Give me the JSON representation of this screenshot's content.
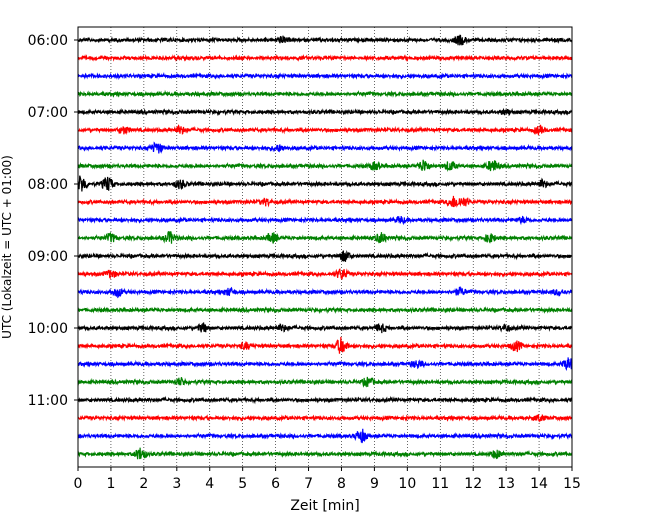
{
  "chart_data": {
    "type": "line",
    "title": "",
    "xlabel": "Zeit  [min]",
    "ylabel": "UTC (Lokalzeit = UTC + 01:00)",
    "xlim": [
      0,
      15
    ],
    "x_ticks": [
      "0",
      "1",
      "2",
      "3",
      "4",
      "5",
      "6",
      "7",
      "8",
      "9",
      "10",
      "11",
      "12",
      "13",
      "14",
      "15"
    ],
    "y_tick_labels": [
      "06:00",
      "07:00",
      "08:00",
      "09:00",
      "10:00",
      "11:00"
    ],
    "grid": "vertical dotted at each minute",
    "trace_colors": [
      "#000000",
      "#ff0000",
      "#0000ff",
      "#008000"
    ],
    "traces": [
      {
        "start": "06:00",
        "color": "#000000",
        "events": [
          [
            6.2,
            0.5
          ],
          [
            11.6,
            0.8
          ]
        ]
      },
      {
        "start": "06:15",
        "color": "#ff0000",
        "events": []
      },
      {
        "start": "06:30",
        "color": "#0000ff",
        "events": []
      },
      {
        "start": "06:45",
        "color": "#008000",
        "events": []
      },
      {
        "start": "07:00",
        "color": "#000000",
        "events": [
          [
            13.0,
            0.4
          ]
        ]
      },
      {
        "start": "07:15",
        "color": "#ff0000",
        "events": [
          [
            1.4,
            0.6
          ],
          [
            3.1,
            0.6
          ],
          [
            14.0,
            0.6
          ]
        ]
      },
      {
        "start": "07:30",
        "color": "#0000ff",
        "events": [
          [
            2.4,
            0.9
          ],
          [
            6.1,
            0.5
          ]
        ]
      },
      {
        "start": "07:45",
        "color": "#008000",
        "events": [
          [
            9.0,
            0.6
          ],
          [
            10.5,
            1.0
          ],
          [
            11.3,
            0.8
          ],
          [
            12.6,
            1.0
          ]
        ]
      },
      {
        "start": "08:00",
        "color": "#000000",
        "events": [
          [
            0.1,
            1.4
          ],
          [
            0.9,
            1.2
          ],
          [
            3.1,
            0.7
          ],
          [
            14.1,
            0.6
          ]
        ]
      },
      {
        "start": "08:15",
        "color": "#ff0000",
        "events": [
          [
            5.7,
            0.5
          ],
          [
            11.4,
            0.9
          ],
          [
            11.7,
            0.7
          ]
        ]
      },
      {
        "start": "08:30",
        "color": "#0000ff",
        "events": [
          [
            9.8,
            0.5
          ],
          [
            13.5,
            0.4
          ]
        ]
      },
      {
        "start": "08:45",
        "color": "#008000",
        "events": [
          [
            1.0,
            0.7
          ],
          [
            2.8,
            1.0
          ],
          [
            5.9,
            0.8
          ],
          [
            9.2,
            0.8
          ],
          [
            12.5,
            0.7
          ]
        ]
      },
      {
        "start": "09:00",
        "color": "#000000",
        "events": [
          [
            8.1,
            0.9
          ]
        ]
      },
      {
        "start": "09:15",
        "color": "#ff0000",
        "events": [
          [
            1.0,
            0.6
          ],
          [
            8.0,
            0.9
          ]
        ]
      },
      {
        "start": "09:30",
        "color": "#0000ff",
        "events": [
          [
            1.2,
            0.7
          ],
          [
            4.6,
            0.6
          ],
          [
            11.6,
            0.6
          ],
          [
            14.6,
            0.5
          ]
        ]
      },
      {
        "start": "09:45",
        "color": "#008000",
        "events": []
      },
      {
        "start": "10:00",
        "color": "#000000",
        "events": [
          [
            3.8,
            0.7
          ],
          [
            6.2,
            0.5
          ],
          [
            9.2,
            0.7
          ],
          [
            13.0,
            0.5
          ]
        ]
      },
      {
        "start": "10:15",
        "color": "#ff0000",
        "events": [
          [
            5.1,
            0.5
          ],
          [
            8.0,
            1.4
          ],
          [
            13.3,
            0.8
          ]
        ]
      },
      {
        "start": "10:30",
        "color": "#0000ff",
        "events": [
          [
            10.3,
            0.6
          ],
          [
            14.9,
            1.0
          ]
        ]
      },
      {
        "start": "10:45",
        "color": "#008000",
        "events": [
          [
            3.1,
            0.6
          ],
          [
            8.8,
            0.7
          ]
        ]
      },
      {
        "start": "11:00",
        "color": "#000000",
        "events": []
      },
      {
        "start": "11:15",
        "color": "#ff0000",
        "events": [
          [
            14.0,
            0.5
          ]
        ]
      },
      {
        "start": "11:30",
        "color": "#0000ff",
        "events": [
          [
            8.6,
            1.1
          ]
        ]
      },
      {
        "start": "11:45",
        "color": "#008000",
        "events": [
          [
            1.9,
            1.0
          ],
          [
            12.7,
            0.7
          ]
        ]
      }
    ]
  }
}
